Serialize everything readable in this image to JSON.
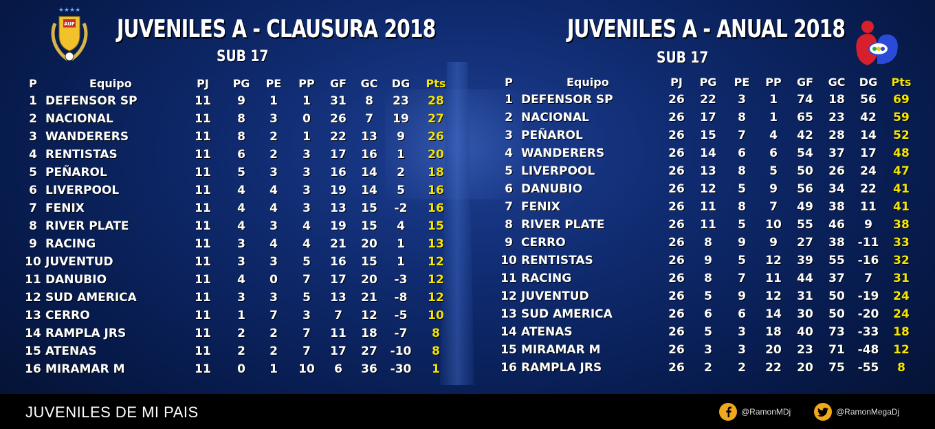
{
  "left": {
    "title": "JUVENILES A - CLAUSURA 2018",
    "subtitle": "SUB 17",
    "headers": [
      "P",
      "Equipo",
      "PJ",
      "PG",
      "PE",
      "PP",
      "GF",
      "GC",
      "DG",
      "Pts"
    ],
    "rows": [
      [
        "1",
        "DEFENSOR SP",
        "11",
        "9",
        "1",
        "1",
        "31",
        "8",
        "23",
        "28"
      ],
      [
        "2",
        "NACIONAL",
        "11",
        "8",
        "3",
        "0",
        "26",
        "7",
        "19",
        "27"
      ],
      [
        "3",
        "WANDERERS",
        "11",
        "8",
        "2",
        "1",
        "22",
        "13",
        "9",
        "26"
      ],
      [
        "4",
        "RENTISTAS",
        "11",
        "6",
        "2",
        "3",
        "17",
        "16",
        "1",
        "20"
      ],
      [
        "5",
        "PEÑAROL",
        "11",
        "5",
        "3",
        "3",
        "16",
        "14",
        "2",
        "18"
      ],
      [
        "6",
        "LIVERPOOL",
        "11",
        "4",
        "4",
        "3",
        "19",
        "14",
        "5",
        "16"
      ],
      [
        "7",
        "FENIX",
        "11",
        "4",
        "4",
        "3",
        "13",
        "15",
        "-2",
        "16"
      ],
      [
        "8",
        "RIVER PLATE",
        "11",
        "4",
        "3",
        "4",
        "19",
        "15",
        "4",
        "15"
      ],
      [
        "9",
        "RACING",
        "11",
        "3",
        "4",
        "4",
        "21",
        "20",
        "1",
        "13"
      ],
      [
        "10",
        "JUVENTUD",
        "11",
        "3",
        "3",
        "5",
        "16",
        "15",
        "1",
        "12"
      ],
      [
        "11",
        "DANUBIO",
        "11",
        "4",
        "0",
        "7",
        "17",
        "20",
        "-3",
        "12"
      ],
      [
        "12",
        "SUD AMERICA",
        "11",
        "3",
        "3",
        "5",
        "13",
        "21",
        "-8",
        "12"
      ],
      [
        "13",
        "CERRO",
        "11",
        "1",
        "7",
        "3",
        "7",
        "12",
        "-5",
        "10"
      ],
      [
        "14",
        "RAMPLA JRS",
        "11",
        "2",
        "2",
        "7",
        "11",
        "18",
        "-7",
        "8"
      ],
      [
        "15",
        "ATENAS",
        "11",
        "2",
        "2",
        "7",
        "17",
        "27",
        "-10",
        "8"
      ],
      [
        "16",
        "MIRAMAR M",
        "11",
        "0",
        "1",
        "10",
        "6",
        "36",
        "-30",
        "1"
      ]
    ]
  },
  "right": {
    "title": "JUVENILES A - ANUAL 2018",
    "subtitle": "SUB 17",
    "headers": [
      "P",
      "Equipo",
      "PJ",
      "PG",
      "PE",
      "PP",
      "GF",
      "GC",
      "DG",
      "Pts"
    ],
    "rows": [
      [
        "1",
        "DEFENSOR SP",
        "26",
        "22",
        "3",
        "1",
        "74",
        "18",
        "56",
        "69"
      ],
      [
        "2",
        "NACIONAL",
        "26",
        "17",
        "8",
        "1",
        "65",
        "23",
        "42",
        "59"
      ],
      [
        "3",
        "PEÑAROL",
        "26",
        "15",
        "7",
        "4",
        "42",
        "28",
        "14",
        "52"
      ],
      [
        "4",
        "WANDERERS",
        "26",
        "14",
        "6",
        "6",
        "54",
        "37",
        "17",
        "48"
      ],
      [
        "5",
        "LIVERPOOL",
        "26",
        "13",
        "8",
        "5",
        "50",
        "26",
        "24",
        "47"
      ],
      [
        "6",
        "DANUBIO",
        "26",
        "12",
        "5",
        "9",
        "56",
        "34",
        "22",
        "41"
      ],
      [
        "7",
        "FENIX",
        "26",
        "11",
        "8",
        "7",
        "49",
        "38",
        "11",
        "41"
      ],
      [
        "8",
        "RIVER PLATE",
        "26",
        "11",
        "5",
        "10",
        "55",
        "46",
        "9",
        "38"
      ],
      [
        "9",
        "CERRO",
        "26",
        "8",
        "9",
        "9",
        "27",
        "38",
        "-11",
        "33"
      ],
      [
        "10",
        "RENTISTAS",
        "26",
        "9",
        "5",
        "12",
        "39",
        "55",
        "-16",
        "32"
      ],
      [
        "11",
        "RACING",
        "26",
        "8",
        "7",
        "11",
        "44",
        "37",
        "7",
        "31"
      ],
      [
        "12",
        "JUVENTUD",
        "26",
        "5",
        "9",
        "12",
        "31",
        "50",
        "-19",
        "24"
      ],
      [
        "13",
        "SUD AMERICA",
        "26",
        "6",
        "6",
        "14",
        "30",
        "50",
        "-20",
        "24"
      ],
      [
        "14",
        "ATENAS",
        "26",
        "5",
        "3",
        "18",
        "40",
        "73",
        "-33",
        "18"
      ],
      [
        "15",
        "MIRAMAR M",
        "26",
        "3",
        "3",
        "20",
        "23",
        "71",
        "-48",
        "12"
      ],
      [
        "16",
        "RAMPLA JRS",
        "26",
        "2",
        "2",
        "22",
        "20",
        "75",
        "-55",
        "8"
      ]
    ]
  },
  "footer": {
    "title": "JUVENILES DE MI PAIS",
    "facebook": "@RamonMDj",
    "twitter": "@RamonMegaDj"
  },
  "logo_left": {
    "text": "AUF",
    "stars": "★★★★"
  },
  "colors": {
    "pts": "#f6e500",
    "background": "#0f2a6e",
    "footer": "#000000"
  }
}
